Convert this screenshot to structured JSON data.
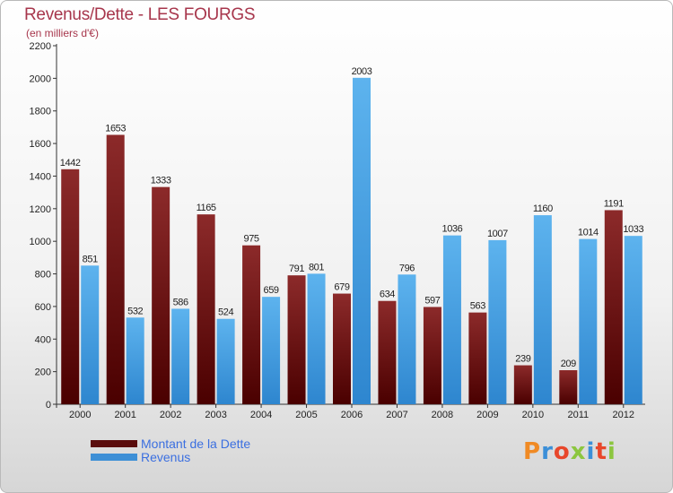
{
  "title": "Revenus/Dette - LES FOURGS",
  "subtitle": "(en milliers d'€)",
  "chart_data": {
    "type": "bar",
    "categories": [
      "2000",
      "2001",
      "2002",
      "2003",
      "2004",
      "2005",
      "2006",
      "2007",
      "2008",
      "2009",
      "2010",
      "2011",
      "2012"
    ],
    "series": [
      {
        "name": "Montant de la Dette",
        "values": [
          1442,
          1653,
          1333,
          1165,
          975,
          791,
          679,
          634,
          597,
          563,
          239,
          209,
          1191
        ],
        "color": "#7b1010"
      },
      {
        "name": "Revenus",
        "values": [
          851,
          532,
          586,
          524,
          659,
          801,
          2003,
          796,
          1036,
          1007,
          1160,
          1014,
          1033
        ],
        "color": "#4aa3e6"
      }
    ],
    "ylim": [
      0,
      2200
    ],
    "yticks": [
      "0",
      "200",
      "400",
      "600",
      "800",
      "1000",
      "1200",
      "1400",
      "1600",
      "1800",
      "2000",
      "2200"
    ],
    "grid": false,
    "legend_position": "bottom-left"
  },
  "legend": {
    "items": [
      {
        "label": "Montant de la Dette",
        "color": "#5a0c0c"
      },
      {
        "label": "Revenus",
        "color": "#3d8fd6"
      }
    ]
  },
  "logo": {
    "text": "Proxiti",
    "letter_colors": [
      "#f08a24",
      "#3b8fd8",
      "#e8472b",
      "#8cc63f",
      "#3b8fd8",
      "#e8472b",
      "#8cc63f"
    ]
  }
}
